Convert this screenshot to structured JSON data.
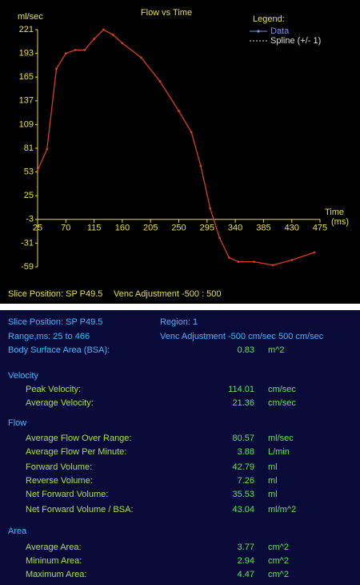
{
  "chart_data": {
    "type": "line",
    "title": "Flow vs Time",
    "y_label": "ml/sec",
    "x_label": "Time",
    "x_unit": "(ms)",
    "legend": {
      "title": "Legend:",
      "entries": [
        {
          "label": "Data",
          "color": "#8088ff"
        },
        {
          "label": "Spline (+/- 1)",
          "color": "#dddddd"
        }
      ]
    },
    "x": [
      25,
      40,
      55,
      70,
      85,
      100,
      115,
      130,
      145,
      160,
      190,
      220,
      250,
      270,
      285,
      300,
      315,
      330,
      345,
      370,
      400,
      430,
      466
    ],
    "series": [
      {
        "name": "Data",
        "color": "#d8401e",
        "values": [
          55,
          80,
          175,
          193,
          197,
          197,
          210,
          221,
          215,
          205,
          188,
          160,
          125,
          100,
          60,
          10,
          -25,
          -48,
          -53,
          -53,
          -57,
          -51,
          -42
        ]
      }
    ],
    "xlim": [
      25,
      475
    ],
    "xticks": [
      25,
      70,
      115,
      160,
      205,
      250,
      295,
      340,
      385,
      430,
      475
    ],
    "ylim": [
      -59,
      221
    ],
    "yticks": [
      221,
      193,
      165,
      137,
      109,
      81,
      53,
      25,
      -3,
      -31,
      -59
    ]
  },
  "footer": {
    "slice_position": "Slice Position: SP  P49.5",
    "venc": "Venc Adjustment -500 : 500"
  },
  "info": {
    "slice_position": "Slice Position: SP  P49.5",
    "region": "Region:   1",
    "range": "Range,ms:  25  to  466",
    "venc": "Venc Adjustment  -500 cm/sec  500 cm/sec",
    "bsa_label": "Body Surface Area (BSA):",
    "bsa_value": 0.83,
    "bsa_unit": "m^2"
  },
  "sections": [
    {
      "title": "Velocity",
      "rows": [
        {
          "label": "Peak Velocity:",
          "value": 114.01,
          "unit": "cm/sec"
        },
        {
          "label": "Average Velocity:",
          "value": 21.36,
          "unit": "cm/sec"
        }
      ]
    },
    {
      "title": "Flow",
      "rows": [
        {
          "label": "Average Flow Over Range:",
          "value": 80.57,
          "unit": "ml/sec"
        },
        {
          "label": "Average Flow Per Minute:",
          "value": 3.88,
          "unit": "L/min"
        },
        {
          "label": "Forward Volume:",
          "value": 42.79,
          "unit": "ml"
        },
        {
          "label": "Reverse Volume:",
          "value": 7.26,
          "unit": "ml"
        },
        {
          "label": "Net Forward Volume:",
          "value": 35.53,
          "unit": "ml"
        },
        {
          "label": "Net Forward Volume / BSA:",
          "value": 43.04,
          "unit": "ml/m^2"
        }
      ]
    },
    {
      "title": "Area",
      "rows": [
        {
          "label": "Average Area:",
          "value": 3.77,
          "unit": "cm^2"
        },
        {
          "label": "Mininum Area:",
          "value": 2.94,
          "unit": "cm^2"
        },
        {
          "label": "Maximum Area:",
          "value": 4.47,
          "unit": "cm^2"
        }
      ]
    }
  ]
}
